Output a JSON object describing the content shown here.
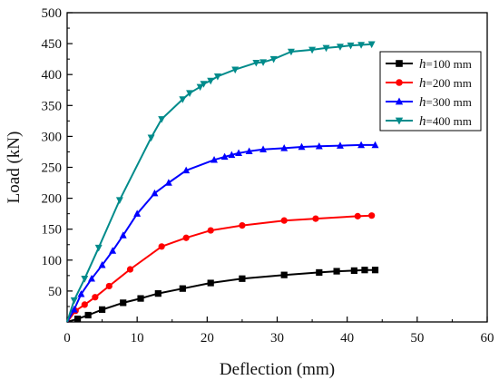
{
  "chart_data": {
    "type": "line",
    "xlabel": "Deflection (mm)",
    "ylabel": "Load (kN)",
    "xlim": [
      0,
      60
    ],
    "ylim": [
      0,
      500
    ],
    "xticks": [
      "0",
      "10",
      "20",
      "30",
      "40",
      "50",
      "60"
    ],
    "yticks": [
      "50",
      "100",
      "150",
      "200",
      "250",
      "300",
      "350",
      "400",
      "450",
      "500"
    ],
    "grid": false,
    "legend_position": "top-right",
    "series": [
      {
        "name_prefix": "h",
        "name": "=100 mm",
        "color": "#000000",
        "marker": "square",
        "x": [
          0,
          1.5,
          3.0,
          5.0,
          8.0,
          10.5,
          13.0,
          16.5,
          20.5,
          25.0,
          31.0,
          36.0,
          38.5,
          41.0,
          42.5,
          44.0
        ],
        "y": [
          0,
          5,
          11,
          20,
          31,
          38,
          46,
          54,
          63,
          70,
          76,
          80,
          82,
          83,
          84,
          84
        ]
      },
      {
        "name_prefix": "h",
        "name": "=200 mm",
        "color": "#ff0000",
        "marker": "circle",
        "x": [
          0,
          1.2,
          2.5,
          4.0,
          6.0,
          9.0,
          13.5,
          17.0,
          20.5,
          25.0,
          31.0,
          35.5,
          41.5,
          43.5
        ],
        "y": [
          0,
          18,
          28,
          40,
          58,
          85,
          122,
          136,
          148,
          156,
          164,
          167,
          171,
          172
        ]
      },
      {
        "name_prefix": "h",
        "name": "=300 mm",
        "color": "#0000ff",
        "marker": "triangle-up",
        "x": [
          0,
          1.0,
          2.0,
          3.5,
          5.0,
          6.5,
          8.0,
          10.0,
          12.5,
          14.5,
          17.0,
          21.0,
          22.5,
          23.5,
          24.5,
          26.0,
          28.0,
          31.0,
          33.5,
          36.0,
          39.0,
          42.0,
          44.0
        ],
        "y": [
          0,
          20,
          45,
          70,
          92,
          115,
          140,
          175,
          208,
          225,
          245,
          262,
          267,
          270,
          273,
          276,
          279,
          281,
          283,
          284,
          285,
          286,
          286
        ]
      },
      {
        "name_prefix": "h",
        "name": "=400 mm",
        "color": "#008b8b",
        "marker": "triangle-down",
        "x": [
          0,
          1.0,
          2.5,
          4.5,
          7.5,
          12.0,
          13.5,
          16.5,
          17.5,
          19.0,
          19.5,
          20.5,
          21.5,
          24.0,
          27.0,
          28.0,
          29.5,
          32.0,
          35.0,
          37.0,
          39.0,
          40.5,
          42.0,
          43.5
        ],
        "y": [
          0,
          35,
          70,
          120,
          197,
          298,
          328,
          360,
          370,
          380,
          385,
          390,
          397,
          408,
          419,
          420,
          425,
          437,
          440,
          443,
          445,
          447,
          448,
          449
        ]
      }
    ]
  }
}
